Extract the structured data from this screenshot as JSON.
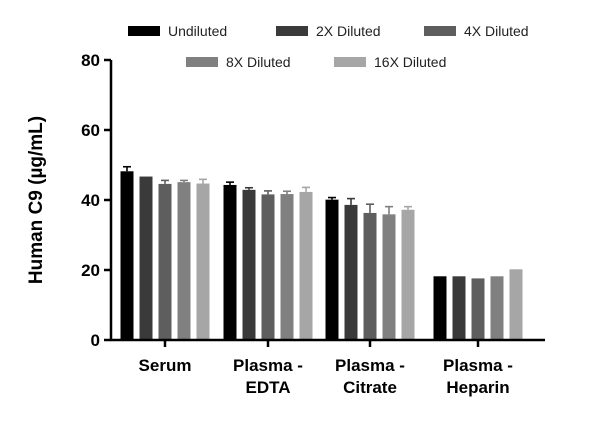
{
  "chart_data": {
    "type": "bar",
    "title": "",
    "xlabel": "",
    "ylabel": "Human C9 (µg/mL)",
    "ylim": [
      0,
      80
    ],
    "yticks": [
      0,
      20,
      40,
      60,
      80
    ],
    "grid": false,
    "legend_position": "top",
    "categories": [
      [
        "Serum"
      ],
      [
        "Plasma -",
        "EDTA"
      ],
      [
        "Plasma -",
        "Citrate"
      ],
      [
        "Plasma -",
        "Heparin"
      ]
    ],
    "series": [
      {
        "name": "Undiluted",
        "color": "#000000",
        "values": [
          48.2,
          44.3,
          40.1,
          18.2
        ],
        "errors": [
          1.3,
          0.8,
          0.6,
          0.0
        ]
      },
      {
        "name": "2X Diluted",
        "color": "#3a3a3a",
        "values": [
          46.7,
          42.9,
          38.6,
          18.2
        ],
        "errors": [
          0.0,
          0.6,
          1.8,
          0.0
        ]
      },
      {
        "name": "4X Diluted",
        "color": "#5e5e5e",
        "values": [
          44.6,
          41.6,
          36.3,
          17.6
        ],
        "errors": [
          1.0,
          1.0,
          2.5,
          0.0
        ]
      },
      {
        "name": "8X Diluted",
        "color": "#808080",
        "values": [
          45.1,
          41.7,
          35.9,
          18.2
        ],
        "errors": [
          0.5,
          0.8,
          2.2,
          0.0
        ]
      },
      {
        "name": "16X Diluted",
        "color": "#a6a6a6",
        "values": [
          44.7,
          42.3,
          37.2,
          20.2
        ],
        "errors": [
          1.2,
          1.3,
          0.9,
          0.0
        ]
      }
    ]
  }
}
